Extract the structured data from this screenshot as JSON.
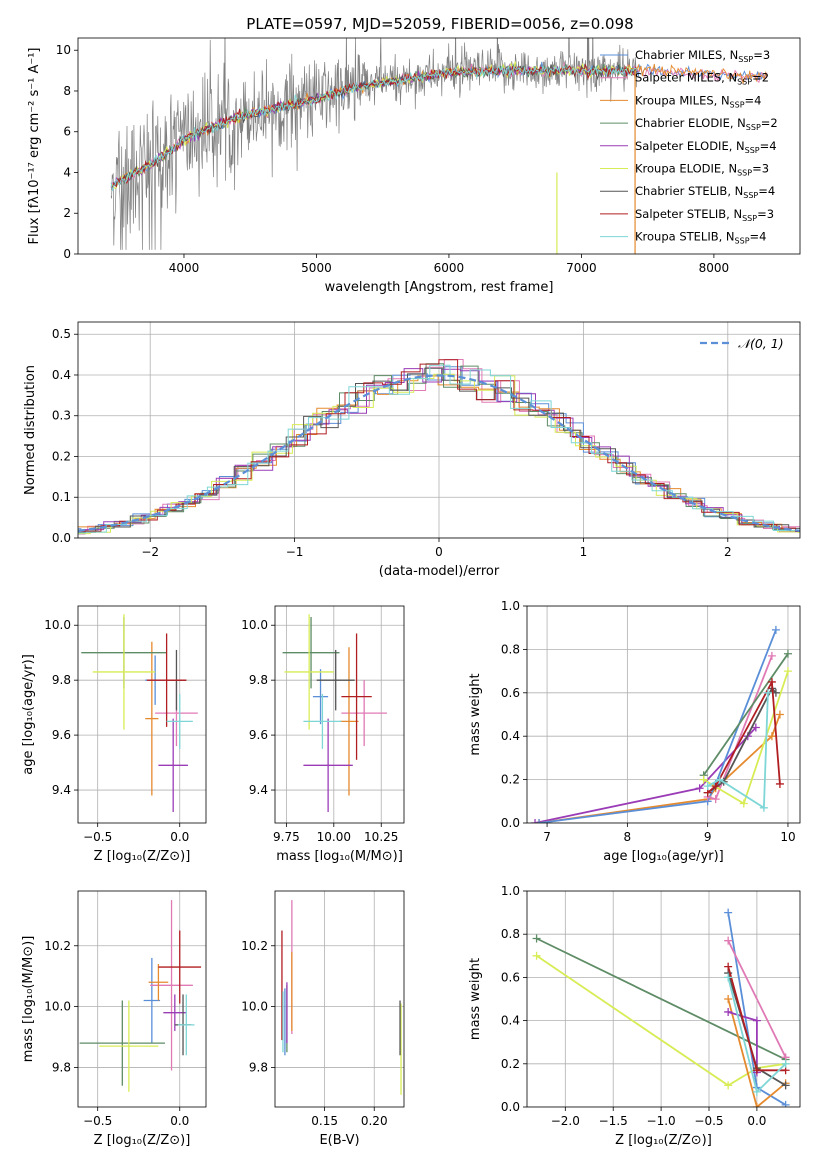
{
  "figure": {
    "title": "PLATE=0597, MJD=52059, FIBERID=0056, z=0.098"
  },
  "colors": {
    "Chabrier MILES": "#5a8fd8",
    "Salpeter MILES": "#e07ab5",
    "Kroupa MILES": "#e58a2e",
    "Chabrier ELODIE": "#5e8c66",
    "Salpeter ELODIE": "#9b3cb7",
    "Kroupa ELODIE": "#d8ec55",
    "Chabrier STELIB": "#555555",
    "Salpeter STELIB": "#b01e22",
    "Kroupa STELIB": "#7ed6d6",
    "data": "#808080",
    "normal": "#5b8fd8"
  },
  "chart_data": [
    {
      "id": "spectrum",
      "type": "line",
      "title": "PLATE=0597, MJD=52059, FIBERID=0056, z=0.098",
      "xlabel": "wavelength [Angstrom, rest frame]",
      "ylabel": "Flux [fλ10⁻¹⁷ erg cm⁻² s⁻¹ A⁻¹]",
      "xlim": [
        3200,
        8650
      ],
      "ylim": [
        0,
        10.6
      ],
      "xticks": [
        4000,
        5000,
        6000,
        7000,
        8000
      ],
      "yticks": [
        0,
        2,
        4,
        6,
        8,
        10
      ],
      "continuum": [
        [
          3450,
          3.3
        ],
        [
          3600,
          3.9
        ],
        [
          3800,
          4.6
        ],
        [
          4000,
          5.6
        ],
        [
          4200,
          6.2
        ],
        [
          4500,
          6.9
        ],
        [
          4800,
          7.3
        ],
        [
          5000,
          7.6
        ],
        [
          5300,
          8.2
        ],
        [
          5600,
          8.5
        ],
        [
          6000,
          8.9
        ],
        [
          6400,
          9.0
        ],
        [
          6800,
          9.0
        ],
        [
          7200,
          9.0
        ],
        [
          7600,
          9.0
        ],
        [
          8000,
          8.8
        ],
        [
          8400,
          8.7
        ]
      ],
      "legend_title_note": "",
      "legend": [
        {
          "label": "Chabrier MILES, N",
          "sub": "SSP",
          "eq": "=3"
        },
        {
          "label": "Salpeter MILES, N",
          "sub": "SSP",
          "eq": "=2"
        },
        {
          "label": "Kroupa MILES, N",
          "sub": "SSP",
          "eq": "=4"
        },
        {
          "label": "Chabrier ELODIE, N",
          "sub": "SSP",
          "eq": "=2"
        },
        {
          "label": "Salpeter ELODIE, N",
          "sub": "SSP",
          "eq": "=4"
        },
        {
          "label": "Kroupa ELODIE, N",
          "sub": "SSP",
          "eq": "=3"
        },
        {
          "label": "Chabrier STELIB, N",
          "sub": "SSP",
          "eq": "=4"
        },
        {
          "label": "Salpeter STELIB, N",
          "sub": "SSP",
          "eq": "=3"
        },
        {
          "label": "Kroupa STELIB, N",
          "sub": "SSP",
          "eq": "=4"
        }
      ]
    },
    {
      "id": "residuals",
      "type": "histogram",
      "xlabel": "(data-model)/error",
      "ylabel": "Normed distribution",
      "xlim": [
        -2.5,
        2.5
      ],
      "ylim": [
        0,
        0.53
      ],
      "xticks": [
        -2,
        -1,
        0,
        1,
        2
      ],
      "yticks": [
        0.0,
        0.1,
        0.2,
        0.3,
        0.4,
        0.5
      ],
      "legend": "𝒩(0, 1)",
      "grid": true
    },
    {
      "id": "age_vs_Z",
      "type": "errorbar",
      "xlabel": "Z [log₁₀(Z/Z⊙)]",
      "ylabel": "age  [log₁₀(age/yr)]",
      "xlim": [
        -0.62,
        0.16
      ],
      "ylim": [
        9.28,
        10.07
      ],
      "xticks": [
        -0.5,
        0.0
      ],
      "yticks": [
        9.4,
        9.6,
        9.8,
        10.0
      ],
      "points": [
        {
          "m": "Chabrier MILES",
          "x": -0.15,
          "y": 9.8,
          "xe": 0.06,
          "ye": 0.09
        },
        {
          "m": "Salpeter MILES",
          "x": -0.02,
          "y": 9.68,
          "xe": 0.13,
          "ye": 0.12
        },
        {
          "m": "Kroupa MILES",
          "x": -0.17,
          "y": 9.66,
          "xe": 0.04,
          "ye": 0.28
        },
        {
          "m": "Chabrier ELODIE",
          "x": -0.34,
          "y": 9.9,
          "xe": 0.26,
          "ye": 0.13
        },
        {
          "m": "Salpeter ELODIE",
          "x": -0.04,
          "y": 9.49,
          "xe": 0.09,
          "ye": 0.17
        },
        {
          "m": "Kroupa ELODIE",
          "x": -0.34,
          "y": 9.83,
          "xe": 0.19,
          "ye": 0.21
        },
        {
          "m": "Chabrier STELIB",
          "x": -0.02,
          "y": 9.8,
          "xe": 0.06,
          "ye": 0.11
        },
        {
          "m": "Salpeter STELIB",
          "x": -0.08,
          "y": 9.8,
          "xe": 0.12,
          "ye": 0.17
        },
        {
          "m": "Kroupa STELIB",
          "x": 0.0,
          "y": 9.65,
          "xe": 0.08,
          "ye": 0.1
        }
      ]
    },
    {
      "id": "age_vs_mass",
      "type": "errorbar",
      "xlabel": "mass [log₁₀(M/M⊙)]",
      "ylabel": "",
      "xlim": [
        9.69,
        10.37
      ],
      "ylim": [
        9.28,
        10.07
      ],
      "xticks": [
        9.75,
        10.0,
        10.25
      ],
      "yticks": [
        9.4,
        9.6,
        9.8,
        10.0
      ],
      "points": [
        {
          "m": "Chabrier MILES",
          "x": 9.93,
          "y": 9.74,
          "xe": 0.04,
          "ye": 0.1
        },
        {
          "m": "Salpeter MILES",
          "x": 10.16,
          "y": 9.68,
          "xe": 0.12,
          "ye": 0.12
        },
        {
          "m": "Kroupa MILES",
          "x": 10.08,
          "y": 9.65,
          "xe": 0.05,
          "ye": 0.27
        },
        {
          "m": "Chabrier ELODIE",
          "x": 9.88,
          "y": 9.9,
          "xe": 0.15,
          "ye": 0.13
        },
        {
          "m": "Salpeter ELODIE",
          "x": 9.97,
          "y": 9.49,
          "xe": 0.13,
          "ye": 0.17
        },
        {
          "m": "Kroupa ELODIE",
          "x": 9.87,
          "y": 9.83,
          "xe": 0.13,
          "ye": 0.21
        },
        {
          "m": "Chabrier STELIB",
          "x": 10.01,
          "y": 9.8,
          "xe": 0.1,
          "ye": 0.11
        },
        {
          "m": "Salpeter STELIB",
          "x": 10.12,
          "y": 9.74,
          "xe": 0.08,
          "ye": 0.23
        },
        {
          "m": "Kroupa STELIB",
          "x": 9.94,
          "y": 9.65,
          "xe": 0.1,
          "ye": 0.1
        }
      ]
    },
    {
      "id": "mass_weight_vs_age",
      "type": "line",
      "xlabel": "age  [log₁₀(age/yr)]",
      "ylabel": "mass weight",
      "xlim": [
        6.75,
        10.15
      ],
      "ylim": [
        0,
        1
      ],
      "xticks": [
        7,
        8,
        9,
        10
      ],
      "yticks": [
        0.0,
        0.2,
        0.4,
        0.6,
        0.8,
        1.0
      ],
      "series": [
        {
          "m": "Salpeter ELODIE",
          "x": [
            6.85,
            8.9,
            9.5,
            9.6
          ],
          "y": [
            0.0,
            0.16,
            0.4,
            0.44
          ]
        },
        {
          "m": "Kroupa MILES",
          "x": [
            6.9,
            9.0,
            9.1,
            9.8,
            9.9
          ],
          "y": [
            0.0,
            0.11,
            0.16,
            0.4,
            0.5
          ]
        },
        {
          "m": "Chabrier MILES",
          "x": [
            6.9,
            9.0,
            9.1,
            9.85
          ],
          "y": [
            0.0,
            0.1,
            0.18,
            0.89
          ]
        },
        {
          "m": "Salpeter MILES",
          "x": [
            9.0,
            9.1,
            9.8
          ],
          "y": [
            0.12,
            0.11,
            0.77
          ]
        },
        {
          "m": "Chabrier ELODIE",
          "x": [
            8.95,
            10.0
          ],
          "y": [
            0.22,
            0.78
          ]
        },
        {
          "m": "Kroupa ELODIE",
          "x": [
            8.95,
            9.45,
            10.0
          ],
          "y": [
            0.2,
            0.09,
            0.7
          ]
        },
        {
          "m": "Chabrier STELIB",
          "x": [
            9.0,
            9.2,
            9.8,
            9.85
          ],
          "y": [
            0.14,
            0.19,
            0.62,
            0.6
          ]
        },
        {
          "m": "Salpeter STELIB",
          "x": [
            9.0,
            9.1,
            9.8,
            9.9
          ],
          "y": [
            0.14,
            0.17,
            0.65,
            0.18
          ]
        },
        {
          "m": "Kroupa STELIB",
          "x": [
            9.0,
            9.15,
            9.7,
            9.75
          ],
          "y": [
            0.17,
            0.2,
            0.07,
            0.6
          ]
        }
      ]
    },
    {
      "id": "mass_vs_Z",
      "type": "errorbar",
      "xlabel": "Z [log₁₀(Z/Z⊙)]",
      "ylabel": "mass [log₁₀(M/M⊙)]",
      "xlim": [
        -0.62,
        0.16
      ],
      "ylim": [
        9.67,
        10.38
      ],
      "xticks": [
        -0.5,
        0.0
      ],
      "yticks": [
        9.8,
        10.0,
        10.2
      ],
      "points": [
        {
          "m": "Chabrier MILES",
          "x": -0.17,
          "y": 10.02,
          "xe": 0.05,
          "ye": 0.14
        },
        {
          "m": "Salpeter MILES",
          "x": -0.05,
          "y": 10.07,
          "xe": 0.13,
          "ye": 0.28
        },
        {
          "m": "Kroupa MILES",
          "x": -0.13,
          "y": 10.08,
          "xe": 0.06,
          "ye": 0.06
        },
        {
          "m": "Chabrier ELODIE",
          "x": -0.35,
          "y": 9.88,
          "xe": 0.26,
          "ye": 0.14
        },
        {
          "m": "Salpeter ELODIE",
          "x": -0.03,
          "y": 9.98,
          "xe": 0.07,
          "ye": 0.06
        },
        {
          "m": "Kroupa ELODIE",
          "x": -0.31,
          "y": 9.87,
          "xe": 0.18,
          "ye": 0.15
        },
        {
          "m": "Chabrier STELIB",
          "x": 0.02,
          "y": 9.94,
          "xe": 0.05,
          "ye": 0.1
        },
        {
          "m": "Salpeter STELIB",
          "x": 0.0,
          "y": 10.13,
          "xe": 0.13,
          "ye": 0.12
        },
        {
          "m": "Kroupa STELIB",
          "x": 0.04,
          "y": 9.94,
          "xe": 0.05,
          "ye": 0.1
        }
      ]
    },
    {
      "id": "mass_vs_EBV",
      "type": "errorbar",
      "xlabel": "E(B-V)",
      "ylabel": "",
      "xlim": [
        0.1,
        0.23
      ],
      "ylim": [
        9.67,
        10.38
      ],
      "xticks": [
        0.15,
        0.2
      ],
      "yticks": [
        9.8,
        10.0,
        10.2
      ],
      "points": [
        {
          "m": "Chabrier MILES",
          "x": 0.11,
          "y": 9.95,
          "xe": 0,
          "ye": 0.11
        },
        {
          "m": "Salpeter MILES",
          "x": 0.117,
          "y": 10.13,
          "xe": 0,
          "ye": 0.22
        },
        {
          "m": "Kroupa MILES",
          "x": 0.117,
          "y": 10.05,
          "xe": 0,
          "ye": 0.13
        },
        {
          "m": "Chabrier ELODIE",
          "x": 0.112,
          "y": 9.96,
          "xe": 0,
          "ye": 0.11
        },
        {
          "m": "Salpeter ELODIE",
          "x": 0.112,
          "y": 9.98,
          "xe": 0,
          "ye": 0.1
        },
        {
          "m": "Kroupa ELODIE",
          "x": 0.227,
          "y": 9.86,
          "xe": 0,
          "ye": 0.15
        },
        {
          "m": "Chabrier STELIB",
          "x": 0.226,
          "y": 9.93,
          "xe": 0,
          "ye": 0.09
        },
        {
          "m": "Salpeter STELIB",
          "x": 0.107,
          "y": 10.07,
          "xe": 0,
          "ye": 0.18
        },
        {
          "m": "Kroupa STELIB",
          "x": 0.108,
          "y": 9.95,
          "xe": 0,
          "ye": 0.1
        }
      ]
    },
    {
      "id": "mass_weight_vs_Z",
      "type": "line",
      "xlabel": "Z [log₁₀(Z/Z⊙)]",
      "ylabel": "mass weight",
      "xlim": [
        -2.4,
        0.45
      ],
      "ylim": [
        0,
        1
      ],
      "xticks": [
        -2.0,
        -1.5,
        -1.0,
        -0.5,
        0.0
      ],
      "yticks": [
        0.0,
        0.2,
        0.4,
        0.6,
        0.8,
        1.0
      ],
      "series": [
        {
          "m": "Chabrier ELODIE",
          "x": [
            -2.3,
            0.3
          ],
          "y": [
            0.78,
            0.22
          ]
        },
        {
          "m": "Kroupa ELODIE",
          "x": [
            -2.3,
            -0.3,
            0.0,
            0.3
          ],
          "y": [
            0.7,
            0.1,
            0.18,
            0.2
          ]
        },
        {
          "m": "Chabrier MILES",
          "x": [
            -0.3,
            0.0,
            0.3
          ],
          "y": [
            0.9,
            0.09,
            0.01
          ]
        },
        {
          "m": "Salpeter MILES",
          "x": [
            -0.3,
            0.3
          ],
          "y": [
            0.77,
            0.23
          ]
        },
        {
          "m": "Kroupa MILES",
          "x": [
            -0.3,
            0.0,
            0.3
          ],
          "y": [
            0.5,
            0.0,
            0.11
          ]
        },
        {
          "m": "Salpeter ELODIE",
          "x": [
            -0.3,
            0.0,
            0.0
          ],
          "y": [
            0.44,
            0.4,
            0.16
          ]
        },
        {
          "m": "Chabrier STELIB",
          "x": [
            -0.3,
            0.0,
            0.3
          ],
          "y": [
            0.62,
            0.18,
            0.1
          ]
        },
        {
          "m": "Salpeter STELIB",
          "x": [
            -0.3,
            0.0,
            0.3
          ],
          "y": [
            0.65,
            0.17,
            0.17
          ]
        },
        {
          "m": "Kroupa STELIB",
          "x": [
            -0.3,
            0.0,
            0.3
          ],
          "y": [
            0.6,
            0.07,
            0.2
          ]
        }
      ]
    }
  ]
}
